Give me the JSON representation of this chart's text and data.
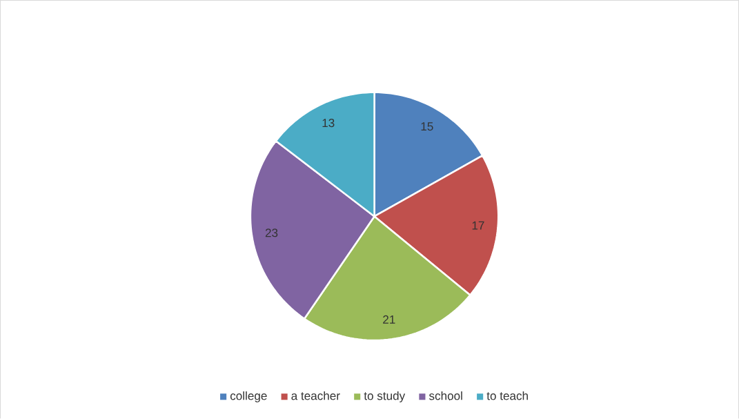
{
  "chart_data": {
    "type": "pie",
    "categories": [
      "college",
      "a teacher",
      "to study",
      "school",
      "to teach"
    ],
    "values": [
      15,
      17,
      21,
      23,
      13
    ],
    "colors": [
      "#4f81bd",
      "#c0504d",
      "#9bbb59",
      "#8064a2",
      "#4bacc6"
    ],
    "data_labels": true,
    "legend": "bottom"
  }
}
